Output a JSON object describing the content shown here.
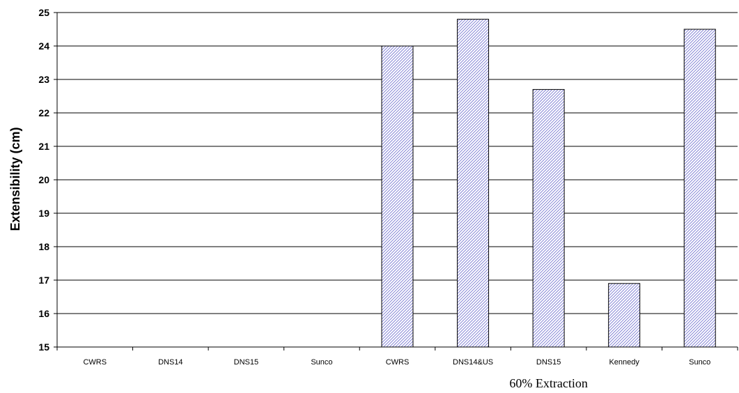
{
  "chart_data": {
    "type": "bar",
    "title": "",
    "ylabel": "Extensibility (cm)",
    "xlabel": "",
    "ylim": [
      15,
      25
    ],
    "yticks": [
      15,
      16,
      17,
      18,
      19,
      20,
      21,
      22,
      23,
      24,
      25
    ],
    "grid": true,
    "categories": [
      "CWRS",
      "DNS14",
      "DNS15",
      "Sunco",
      "CWRS",
      "DNS14&US",
      "DNS15",
      "Kennedy",
      "Sunco"
    ],
    "values": [
      null,
      null,
      null,
      null,
      24.0,
      24.8,
      22.7,
      16.9,
      24.5
    ],
    "groups": [
      {
        "label": "",
        "start": 0,
        "end": 3
      },
      {
        "label": "60% Extraction",
        "start": 4,
        "end": 8
      }
    ],
    "bar_fill": "#9999ff",
    "bar_stroke": "#000080",
    "bar_pattern": "diagonal-hatch"
  }
}
